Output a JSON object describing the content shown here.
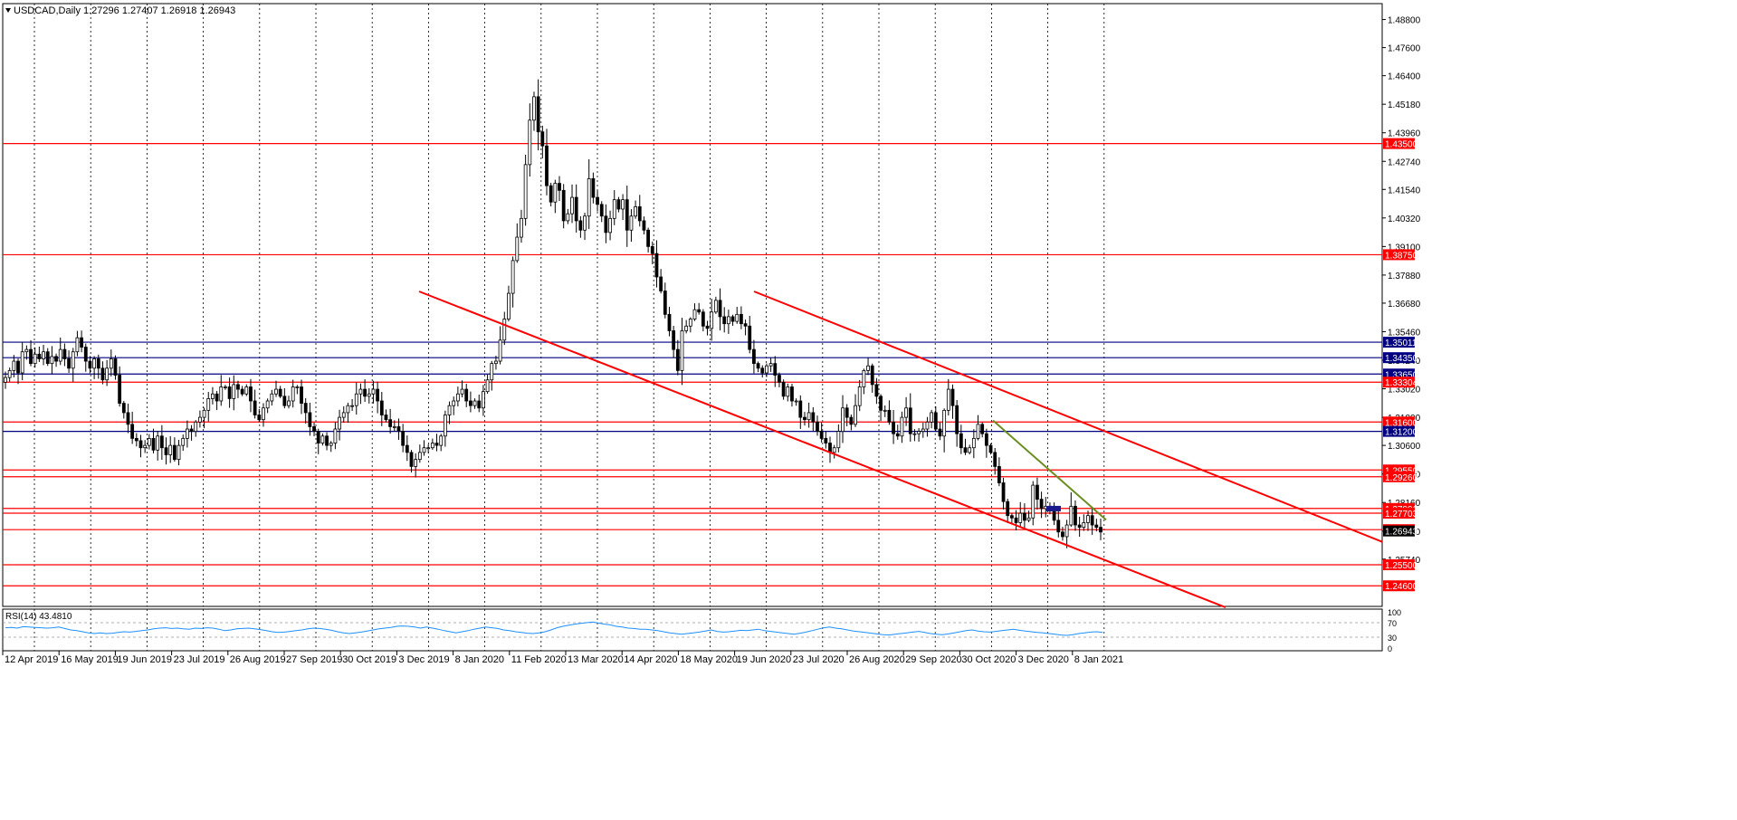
{
  "chart_data": {
    "type": "candlestick",
    "symbol_header": "USDCAD,Daily  1.27296 1.27407 1.26918 1.26943",
    "open": 1.27296,
    "high": 1.27407,
    "low": 1.26918,
    "close": 1.26943,
    "ylim": [
      1.2372,
      1.4948
    ],
    "y_ticks": [
      "1.48800",
      "1.47600",
      "1.46400",
      "1.45180",
      "1.43960",
      "1.42740",
      "1.41540",
      "1.40320",
      "1.39100",
      "1.37880",
      "1.36680",
      "1.35460",
      "1.34240",
      "1.33020",
      "1.31800",
      "1.30600",
      "1.29380",
      "1.28160",
      "1.26940",
      "1.25740"
    ],
    "x_ticks": [
      "12 Apr 2019",
      "16 May 2019",
      "19 Jun 2019",
      "23 Jul 2019",
      "26 Aug 2019",
      "27 Sep 2019",
      "30 Oct 2019",
      "3 Dec 2019",
      "8 Jan 2020",
      "11 Feb 2020",
      "13 Mar 2020",
      "14 Apr 2020",
      "18 May 2020",
      "19 Jun 2020",
      "23 Jul 2020",
      "26 Aug 2020",
      "29 Sep 2020",
      "30 Oct 2020",
      "3 Dec 2020",
      "8 Jan 2021"
    ],
    "grid": true,
    "horizontal_levels": [
      {
        "value": 1.435,
        "label": "1.43500",
        "color": "#ff0000"
      },
      {
        "value": 1.3875,
        "label": "1.38750",
        "color": "#ff0000"
      },
      {
        "value": 1.35011,
        "label": "1.35011",
        "color": "#000080"
      },
      {
        "value": 1.3435,
        "label": "1.34350",
        "color": "#000080"
      },
      {
        "value": 1.3365,
        "label": "1.33650",
        "color": "#000080"
      },
      {
        "value": 1.33304,
        "label": "1.33304",
        "color": "#ff0000"
      },
      {
        "value": 1.316,
        "label": "1.31600",
        "color": "#ff0000"
      },
      {
        "value": 1.312,
        "label": "1.31200",
        "color": "#000080"
      },
      {
        "value": 1.2955,
        "label": "1.29550",
        "color": "#ff0000"
      },
      {
        "value": 1.2926,
        "label": "1.29260",
        "color": "#ff0000"
      },
      {
        "value": 1.27906,
        "label": "1.27906",
        "color": "#ff0000"
      },
      {
        "value": 1.27703,
        "label": "1.27703",
        "color": "#ff0000"
      },
      {
        "value": 1.27,
        "label": "1.27000",
        "color": "#ff0000"
      },
      {
        "value": 1.255,
        "label": "1.25500",
        "color": "#ff0000"
      },
      {
        "value": 1.246,
        "label": "1.24600",
        "color": "#ff0000"
      }
    ],
    "current_price_label": "1.26943",
    "candles_close": [
      1.335,
      1.338,
      1.342,
      1.337,
      1.346,
      1.347,
      1.341,
      1.345,
      1.343,
      1.346,
      1.341,
      1.344,
      1.342,
      1.347,
      1.343,
      1.339,
      1.346,
      1.352,
      1.348,
      1.342,
      1.339,
      1.343,
      1.339,
      1.334,
      1.339,
      1.343,
      1.336,
      1.324,
      1.32,
      1.315,
      1.309,
      1.308,
      1.305,
      1.306,
      1.309,
      1.304,
      1.31,
      1.305,
      1.302,
      1.306,
      1.3,
      1.306,
      1.309,
      1.313,
      1.312,
      1.316,
      1.318,
      1.321,
      1.326,
      1.328,
      1.325,
      1.331,
      1.331,
      1.326,
      1.332,
      1.33,
      1.328,
      1.331,
      1.325,
      1.319,
      1.317,
      1.322,
      1.325,
      1.328,
      1.33,
      1.327,
      1.323,
      1.325,
      1.331,
      1.331,
      1.324,
      1.32,
      1.314,
      1.312,
      1.307,
      1.31,
      1.306,
      1.307,
      1.313,
      1.318,
      1.32,
      1.323,
      1.323,
      1.328,
      1.33,
      1.327,
      1.328,
      1.33,
      1.325,
      1.319,
      1.317,
      1.314,
      1.314,
      1.312,
      1.306,
      1.303,
      1.297,
      1.3,
      1.303,
      1.305,
      1.305,
      1.307,
      1.306,
      1.31,
      1.319,
      1.323,
      1.325,
      1.328,
      1.33,
      1.325,
      1.323,
      1.325,
      1.322,
      1.329,
      1.334,
      1.341,
      1.342,
      1.351,
      1.36,
      1.371,
      1.385,
      1.395,
      1.403,
      1.426,
      1.445,
      1.455,
      1.44,
      1.434,
      1.417,
      1.41,
      1.418,
      1.415,
      1.402,
      1.405,
      1.412,
      1.402,
      1.398,
      1.404,
      1.42,
      1.412,
      1.409,
      1.404,
      1.397,
      1.403,
      1.411,
      1.407,
      1.411,
      1.398,
      1.404,
      1.408,
      1.402,
      1.398,
      1.391,
      1.388,
      1.378,
      1.372,
      1.362,
      1.355,
      1.347,
      1.338,
      1.355,
      1.357,
      1.36,
      1.364,
      1.363,
      1.357,
      1.356,
      1.363,
      1.368,
      1.361,
      1.358,
      1.361,
      1.359,
      1.362,
      1.358,
      1.357,
      1.347,
      1.341,
      1.339,
      1.337,
      1.34,
      1.341,
      1.336,
      1.333,
      1.327,
      1.331,
      1.325,
      1.325,
      1.318,
      1.317,
      1.32,
      1.316,
      1.312,
      1.309,
      1.307,
      1.303,
      1.305,
      1.312,
      1.322,
      1.318,
      1.315,
      1.323,
      1.331,
      1.338,
      1.34,
      1.332,
      1.327,
      1.321,
      1.321,
      1.316,
      1.311,
      1.31,
      1.318,
      1.322,
      1.311,
      1.311,
      1.312,
      1.313,
      1.316,
      1.32,
      1.313,
      1.31,
      1.321,
      1.33,
      1.323,
      1.311,
      1.305,
      1.303,
      1.305,
      1.309,
      1.315,
      1.311,
      1.306,
      1.303,
      1.297,
      1.29,
      1.282,
      1.276,
      1.275,
      1.273,
      1.277,
      1.274,
      1.275,
      1.289,
      1.283,
      1.279,
      1.28,
      1.278,
      1.274,
      1.269,
      1.267,
      1.272,
      1.28,
      1.272,
      1.271,
      1.273,
      1.276,
      1.272,
      1.271,
      1.269
    ],
    "channel_lines": [
      {
        "x1": 463,
        "y1": 1.3718,
        "x2": 1354,
        "y2": 1.2368,
        "color": "#ff0000"
      },
      {
        "x1": 833,
        "y1": 1.3718,
        "x2": 1527,
        "y2": 1.2648,
        "color": "#ff0000"
      },
      {
        "x1": 1097,
        "y1": 1.3167,
        "x2": 1222,
        "y2": 1.2742,
        "color": "#6b8e23"
      }
    ],
    "rsi": {
      "label": "RSI(14) 43.4810",
      "levels": [
        70,
        30
      ],
      "scale_labels": [
        "100",
        "70",
        "30",
        "0"
      ],
      "values": [
        56,
        57,
        55,
        59,
        58,
        57,
        56,
        55,
        56,
        58,
        54,
        50,
        48,
        45,
        42,
        40,
        42,
        40,
        41,
        43,
        45,
        44,
        46,
        48,
        50,
        53,
        55,
        56,
        54,
        55,
        53,
        52,
        55,
        54,
        56,
        55,
        52,
        48,
        50,
        53,
        54,
        55,
        53,
        51,
        48,
        45,
        43,
        44,
        46,
        48,
        50,
        53,
        55,
        54,
        52,
        49,
        45,
        42,
        40,
        42,
        44,
        47,
        50,
        53,
        55,
        57,
        60,
        61,
        60,
        58,
        55,
        58,
        55,
        52,
        48,
        45,
        42,
        45,
        48,
        52,
        55,
        58,
        56,
        54,
        50,
        48,
        45,
        43,
        41,
        40,
        42,
        45,
        50,
        56,
        60,
        63,
        66,
        68,
        70,
        72,
        69,
        66,
        64,
        60,
        58,
        55,
        54,
        52,
        52,
        50,
        48,
        45,
        42,
        40,
        38,
        40,
        42,
        44,
        47,
        50,
        46,
        44,
        45,
        47,
        49,
        48,
        50,
        52,
        48,
        46,
        44,
        42,
        40,
        38,
        41,
        44,
        48,
        52,
        56,
        58,
        55,
        53,
        50,
        47,
        45,
        43,
        41,
        39,
        37,
        36,
        38,
        40,
        42,
        44,
        46,
        43,
        40,
        38,
        37,
        39,
        42,
        45,
        48,
        50,
        47,
        45,
        44,
        46,
        48,
        50,
        52,
        49,
        47,
        45,
        43,
        42,
        40,
        38,
        36,
        35,
        37,
        40,
        42,
        44,
        45,
        43
      ]
    }
  }
}
